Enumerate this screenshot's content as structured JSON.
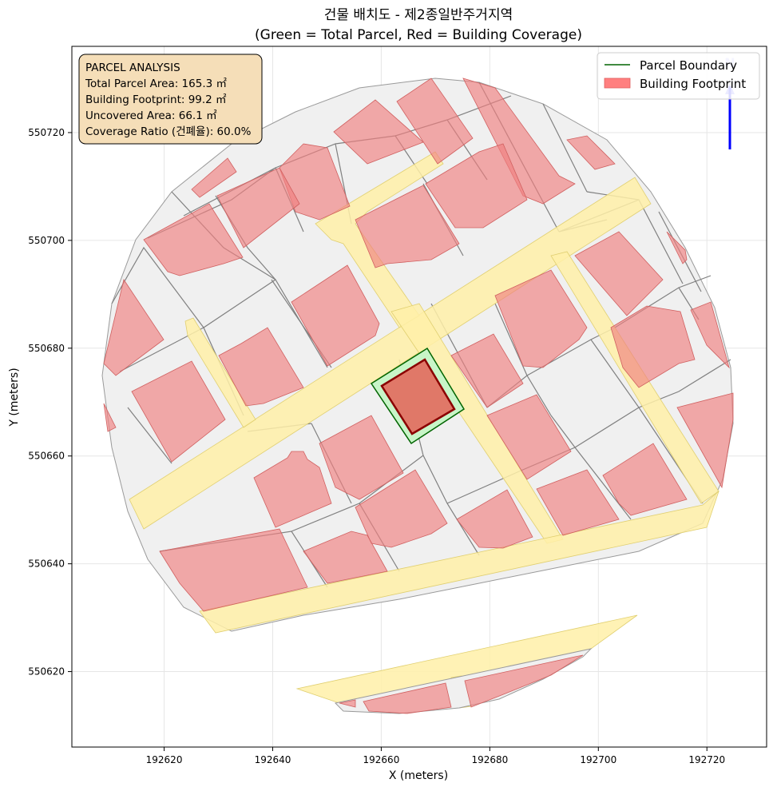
{
  "title_line1": "건물 배치도 - 제2종일반주거지역",
  "title_line2": "(Green = Total Parcel, Red = Building Coverage)",
  "xlabel": "X (meters)",
  "ylabel": "Y (meters)",
  "x_ticks": [
    "192620",
    "192640",
    "192660",
    "192680",
    "192700",
    "192720"
  ],
  "y_ticks": [
    "550620",
    "550640",
    "550660",
    "550680",
    "550700",
    "550720"
  ],
  "info_box": {
    "heading": "PARCEL ANALYSIS",
    "total_area": "Total Parcel Area: 165.3 ㎡",
    "footprint": "Building Footprint: 99.2 ㎡",
    "uncovered": "Uncovered Area: 66.1 ㎡",
    "coverage": "Coverage Ratio (건폐율): 60.0%"
  },
  "legend": {
    "parcel_boundary": "Parcel Boundary",
    "building_footprint": "Building Footprint"
  },
  "north_arrow": "N",
  "colors": {
    "parcel_fill": "#f0f0f0",
    "parcel_line": "#7a7a7a",
    "road_fill": "#fff0a8",
    "neighbor_building": "#f4a6a6",
    "target_parcel": "#c8f5c8",
    "target_building": "#e07868",
    "info_box": "#f5deb8",
    "north_arrow": "#0000ff"
  },
  "chart_data": {
    "type": "map",
    "x_range": [
      192603,
      192731
    ],
    "y_range": [
      550606,
      550736
    ],
    "grid": true,
    "legend_placement": "top-right",
    "target_parcel": [
      [
        192659,
        550675
      ],
      [
        192669,
        550681
      ],
      [
        192675,
        550669
      ],
      [
        192666,
        550662
      ]
    ],
    "target_building": [
      [
        192660,
        550674
      ],
      [
        192668,
        550679
      ],
      [
        192674,
        550670
      ],
      [
        192666,
        550665
      ]
    ],
    "parcel_area_m2": 165.3,
    "building_footprint_m2": 99.2,
    "uncovered_area_m2": 66.1,
    "coverage_ratio_pct": 60.0
  }
}
